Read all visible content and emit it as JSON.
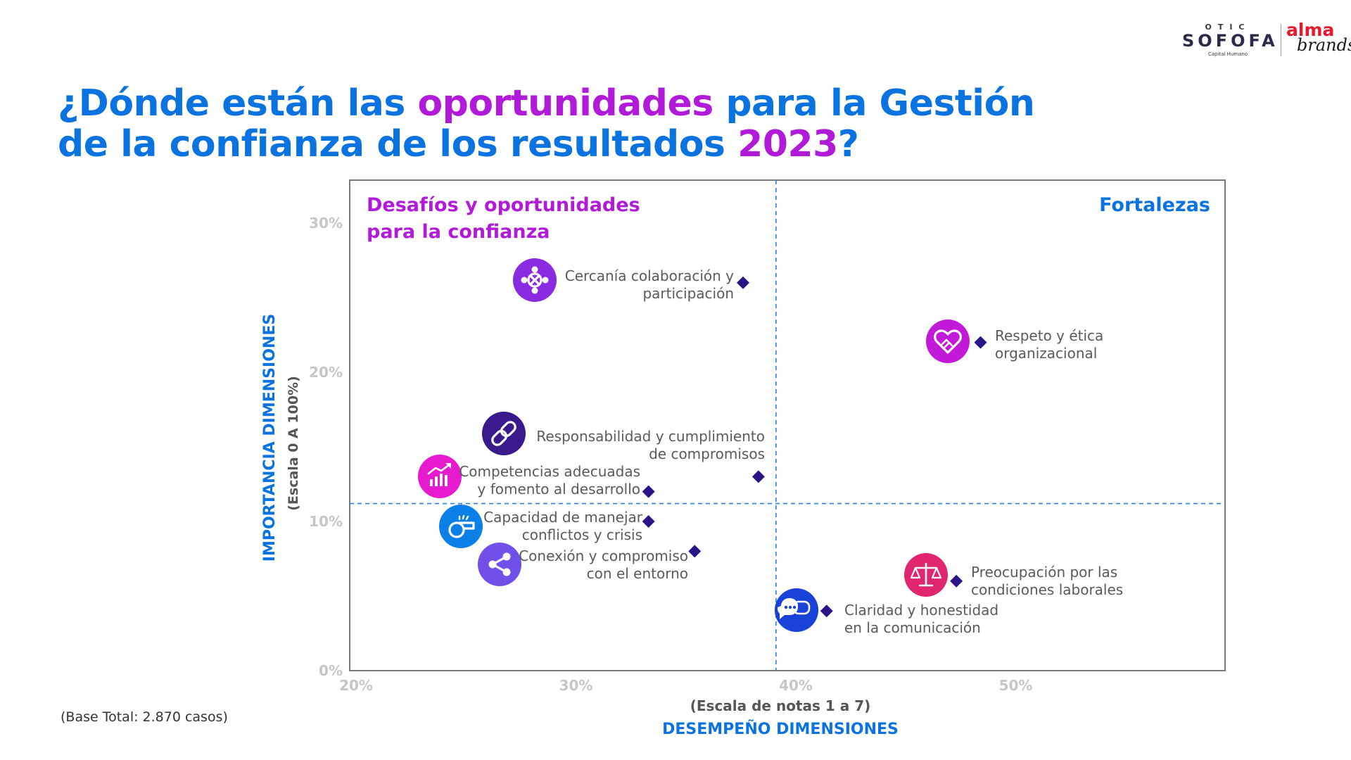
{
  "logos": {
    "otic_top": "OTIC",
    "otic_main": "SOFOFA",
    "otic_sub": "Capital Humano",
    "alma_top": "alma",
    "alma_bottom": "brands"
  },
  "title": {
    "line1_part1": "¿Dónde están las ",
    "line1_highlight": "oportunidades",
    "line1_part2": " para la Gestión",
    "line2_part1": "de la confianza de los resultados ",
    "line2_highlight": "2023",
    "line2_part2": "?"
  },
  "colors": {
    "title_blue": "#0a73e0",
    "accent_purple": "#b01ad8",
    "marker": "#2b1488",
    "label_gray": "#5a5a5a",
    "tick_gray": "#c6c6c6",
    "axis_blue": "#0a73e0",
    "divider_blue": "#2f7fe0",
    "plot_border": "#7a7a7a"
  },
  "base_note": "(Base Total: 2.870 casos)",
  "chart_data": {
    "type": "scatter",
    "title": "",
    "xlabel": "DESEMPEÑO DIMENSIONES",
    "xlabel_sub": "(Escala de notas 1 a 7)",
    "ylabel": "IMPORTANCIA DIMENSIONES",
    "ylabel_sub": "(Escala 0 A 100%)",
    "xlim": [
      0.2,
      0.597
    ],
    "ylim": [
      0,
      0.33
    ],
    "x_ticks": [
      {
        "value": 0.2,
        "label": "20%"
      },
      {
        "value": 0.3,
        "label": "30%"
      },
      {
        "value": 0.4,
        "label": "40%"
      },
      {
        "value": 0.5,
        "label": "50%"
      }
    ],
    "y_ticks": [
      {
        "value": 0,
        "label": "0%"
      },
      {
        "value": 0.1,
        "label": "10%"
      },
      {
        "value": 0.2,
        "label": "20%"
      },
      {
        "value": 0.3,
        "label": "30%"
      }
    ],
    "grid": false,
    "quadrant_divider_x": 0.391,
    "quadrant_divider_y": 0.112,
    "quadrant_labels": {
      "top_left": [
        "Desafíos y oportunidades",
        "para la confianza"
      ],
      "top_right": "Fortalezas"
    },
    "points": [
      {
        "x": 0.376,
        "y": 0.26,
        "label_lines": [
          "Cercanía colaboración y",
          "participación"
        ],
        "icon": "people-network-icon",
        "icon_color": "#8a2be2"
      },
      {
        "x": 0.484,
        "y": 0.22,
        "label_lines": [
          "Respeto y ética",
          "organizacional"
        ],
        "icon": "heart-handshake-icon",
        "icon_color": "#c21ad8"
      },
      {
        "x": 0.383,
        "y": 0.13,
        "label_lines": [
          "Responsabilidad y cumplimiento",
          "de compromisos"
        ],
        "icon": "link-icon",
        "icon_color": "#3a1a8c"
      },
      {
        "x": 0.333,
        "y": 0.12,
        "label_lines": [
          "Competencias adecuadas",
          "y fomento al desarrollo"
        ],
        "icon": "growth-chart-icon",
        "icon_color": "#e81ad0"
      },
      {
        "x": 0.333,
        "y": 0.1,
        "label_lines": [
          "Capacidad de manejar",
          "conflictos y crisis"
        ],
        "icon": "whistle-icon",
        "icon_color": "#0a7fe8"
      },
      {
        "x": 0.354,
        "y": 0.08,
        "label_lines": [
          "Conexión y compromiso",
          "con el entorno"
        ],
        "icon": "share-icon",
        "icon_color": "#7050e8"
      },
      {
        "x": 0.473,
        "y": 0.06,
        "label_lines": [
          "Preocupación por las",
          "condiciones laborales"
        ],
        "icon": "scales-icon",
        "icon_color": "#e0266e"
      },
      {
        "x": 0.414,
        "y": 0.04,
        "label_lines": [
          "Claridad y honestidad",
          "en la comunicación"
        ],
        "icon": "chat-bubbles-icon",
        "icon_color": "#1842d8"
      }
    ]
  }
}
